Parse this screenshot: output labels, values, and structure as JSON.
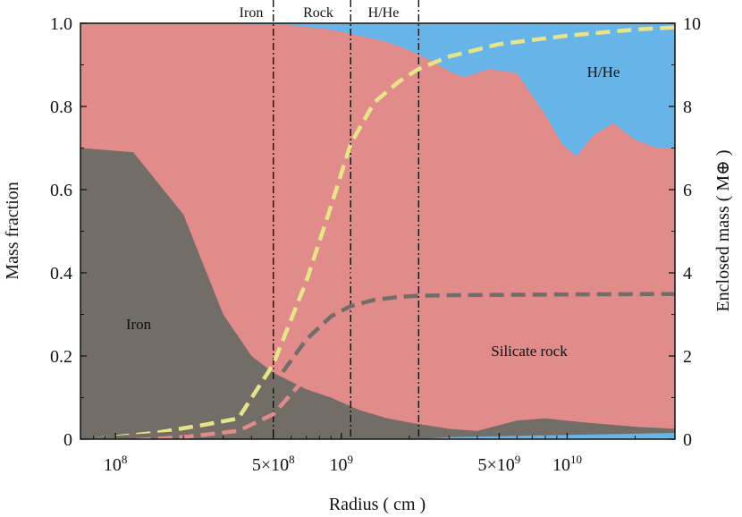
{
  "chart_data": {
    "type": "area",
    "xlabel": "Radius ( cm )",
    "ylabel_left": "Mass fraction",
    "ylabel_right": "Enclosed mass ( M⊕ )",
    "x_scale": "log",
    "xlim": [
      70000000,
      30000000000
    ],
    "ylim_left": [
      0,
      1
    ],
    "ylim_right": [
      0,
      10
    ],
    "x_ticks": [
      {
        "value": 100000000,
        "label": "10^8"
      },
      {
        "value": 500000000,
        "label": "5×10^8"
      },
      {
        "value": 1000000000,
        "label": "10^9"
      },
      {
        "value": 5000000000,
        "label": "5×10^9"
      },
      {
        "value": 10000000000,
        "label": "10^10"
      }
    ],
    "y_ticks_left": [
      "0",
      "0.2",
      "0.4",
      "0.6",
      "0.8",
      "1.0"
    ],
    "y_ticks_right": [
      "0",
      "2",
      "4",
      "6",
      "8",
      "10"
    ],
    "boundaries": [
      500000000,
      1100000000,
      2200000000
    ],
    "region_labels": [
      "Iron",
      "Rock",
      "H/He"
    ],
    "area_labels": {
      "iron": "Iron",
      "rock": "Silicate rock",
      "hhe": "H/He"
    },
    "colors": {
      "iron": "#726d66",
      "rock": "#e18b8b",
      "hhe": "#67b5e8",
      "total": "#e7e48a",
      "rock_line": "#e8312d",
      "iron_line": "#242424"
    },
    "areas": {
      "iron_fraction": {
        "x": [
          70000000,
          120000000,
          200000000,
          300000000,
          400000000,
          500000000,
          700000000,
          900000000,
          1200000000,
          1600000000,
          2000000000,
          3000000000,
          4000000000,
          6000000000,
          8000000000,
          12000000000,
          20000000000,
          30000000000
        ],
        "y": [
          0.7,
          0.69,
          0.54,
          0.3,
          0.2,
          0.16,
          0.12,
          0.1,
          0.07,
          0.05,
          0.04,
          0.025,
          0.02,
          0.045,
          0.05,
          0.04,
          0.03,
          0.025
        ]
      },
      "rock_top": {
        "x": [
          70000000,
          300000000,
          600000000,
          900000000,
          1200000000,
          1600000000,
          2000000000,
          2500000000,
          3000000000,
          3500000000,
          4500000000,
          6000000000,
          8000000000,
          9500000000,
          11000000000,
          13000000000,
          16000000000,
          20000000000,
          25000000000,
          30000000000
        ],
        "y": [
          1.0,
          1.0,
          0.995,
          0.985,
          0.97,
          0.955,
          0.935,
          0.91,
          0.885,
          0.87,
          0.89,
          0.88,
          0.78,
          0.71,
          0.68,
          0.73,
          0.76,
          0.72,
          0.7,
          0.7
        ]
      },
      "floor": {
        "x": [
          70000000,
          2200000000,
          3000000000,
          30000000000
        ],
        "y": [
          0.0,
          0.0,
          0.005,
          0.015
        ]
      }
    },
    "series": [
      {
        "key": "total",
        "axis": "right",
        "x": [
          80000000,
          150000000,
          250000000,
          350000000,
          500000000,
          700000000,
          900000000,
          1100000000,
          1400000000,
          1800000000,
          2200000000,
          3000000000,
          5000000000,
          10000000000,
          20000000000,
          30000000000
        ],
        "y": [
          0.0,
          0.15,
          0.35,
          0.5,
          1.8,
          3.8,
          5.6,
          7.1,
          8.1,
          8.6,
          8.9,
          9.2,
          9.5,
          9.7,
          9.85,
          9.9
        ]
      },
      {
        "key": "rock",
        "axis": "right",
        "x": [
          80000000,
          200000000,
          350000000,
          500000000,
          700000000,
          900000000,
          1100000000,
          1400000000,
          1800000000,
          2200000000,
          3000000000,
          5000000000,
          10000000000,
          20000000000,
          30000000000
        ],
        "y": [
          0.0,
          0.05,
          0.2,
          0.6,
          1.5,
          2.7,
          3.9,
          4.9,
          5.4,
          5.6,
          5.85,
          6.05,
          6.2,
          6.3,
          6.32
        ]
      },
      {
        "key": "iron",
        "axis": "right",
        "x": [
          80000000,
          200000000,
          350000000,
          500000000,
          700000000,
          900000000,
          1100000000,
          1400000000,
          1800000000,
          2200000000,
          3000000000,
          5000000000,
          10000000000,
          30000000000
        ],
        "y": [
          0.0,
          0.15,
          0.35,
          1.3,
          2.4,
          2.95,
          3.2,
          3.35,
          3.42,
          3.45,
          3.46,
          3.47,
          3.48,
          3.49
        ]
      }
    ]
  }
}
